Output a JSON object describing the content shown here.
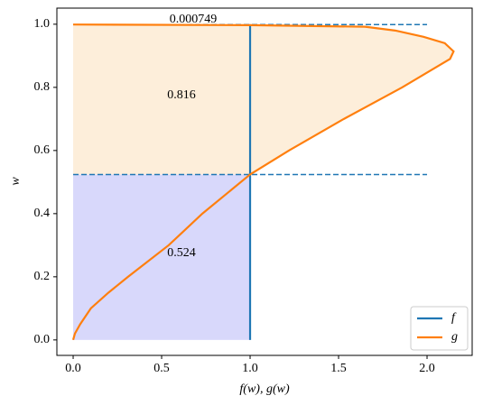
{
  "chart_data": {
    "type": "line",
    "xlabel": "f(w), g(w)",
    "ylabel": "w",
    "xlim": [
      -0.092,
      2.255
    ],
    "ylim": [
      -0.049,
      1.051
    ],
    "xticks": [
      {
        "value": 0,
        "label": "0.0"
      },
      0.5,
      {
        "value": 1,
        "label": "1.0"
      },
      1.5,
      {
        "value": 2,
        "label": "2.0"
      }
    ],
    "yticks": [
      {
        "value": 0,
        "label": "0.0"
      },
      0.2,
      0.4,
      0.6,
      0.8,
      {
        "value": 1,
        "label": "1.0"
      }
    ],
    "series": [
      {
        "name": "f",
        "color": "#1f77b4",
        "x": [
          1,
          1
        ],
        "values": [
          0,
          1
        ]
      },
      {
        "name": "g",
        "color": "#ff7f0e",
        "x": [
          0,
          0.01,
          0.04,
          0.1,
          0.2,
          0.31,
          0.54,
          0.73,
          1.0,
          1.22,
          1.53,
          1.86,
          2.01,
          2.13,
          2.15,
          2.1,
          1.98,
          1.82,
          1.65,
          1.0,
          0
        ],
        "values": [
          0,
          0.02,
          0.05,
          0.1,
          0.15,
          0.2,
          0.3,
          0.4,
          0.524,
          0.6,
          0.7,
          0.8,
          0.85,
          0.89,
          0.914,
          0.94,
          0.96,
          0.98,
          0.992,
          0.997,
          0.999
        ]
      }
    ],
    "hlines": [
      {
        "y": 0.524,
        "xmin": 0,
        "xmax": 2.0,
        "color": "#1f77b4"
      },
      {
        "y": 0.999,
        "xmin": 0,
        "xmax": 2.0,
        "color": "#1f77b4"
      }
    ],
    "fill_colors": [
      "#d8d8fb",
      "#fdeeda"
    ],
    "annotations": [
      "0.000749",
      "0.816",
      "0.524"
    ],
    "legend": "lower right"
  }
}
